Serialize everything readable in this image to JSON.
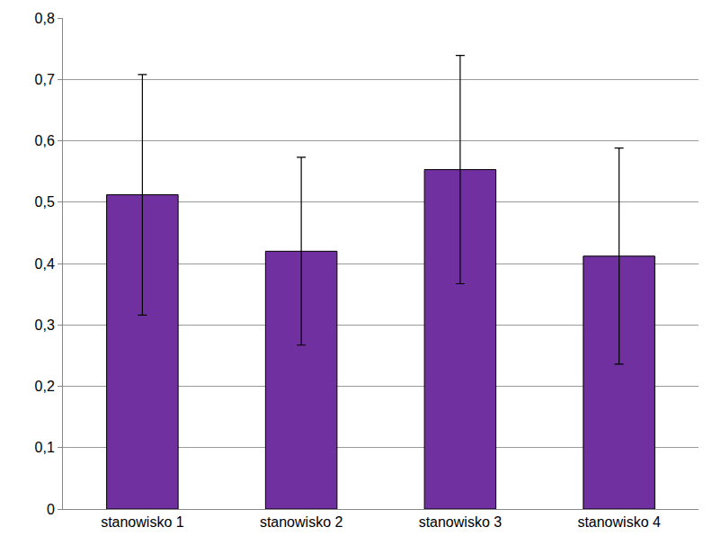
{
  "chart_data": {
    "type": "bar",
    "categories": [
      "stanowisko 1",
      "stanowisko 2",
      "stanowisko 3",
      "stanowisko 4"
    ],
    "values": [
      0.512,
      0.42,
      0.553,
      0.412
    ],
    "errors": [
      0.196,
      0.153,
      0.186,
      0.176
    ],
    "color": "#7030a0",
    "ylim": [
      0,
      0.8
    ],
    "yticks": [
      0,
      {
        "value": 0.1,
        "label": "0,1"
      },
      {
        "value": 0.2,
        "label": "0,2"
      },
      {
        "value": 0.3,
        "label": "0,3"
      },
      {
        "value": 0.4,
        "label": "0,4"
      },
      {
        "value": 0.5,
        "label": "0,5"
      },
      {
        "value": 0.6,
        "label": "0,6"
      },
      {
        "value": 0.7,
        "label": "0,7"
      },
      {
        "value": 0.8,
        "label": "0,8"
      }
    ],
    "grid": true
  }
}
